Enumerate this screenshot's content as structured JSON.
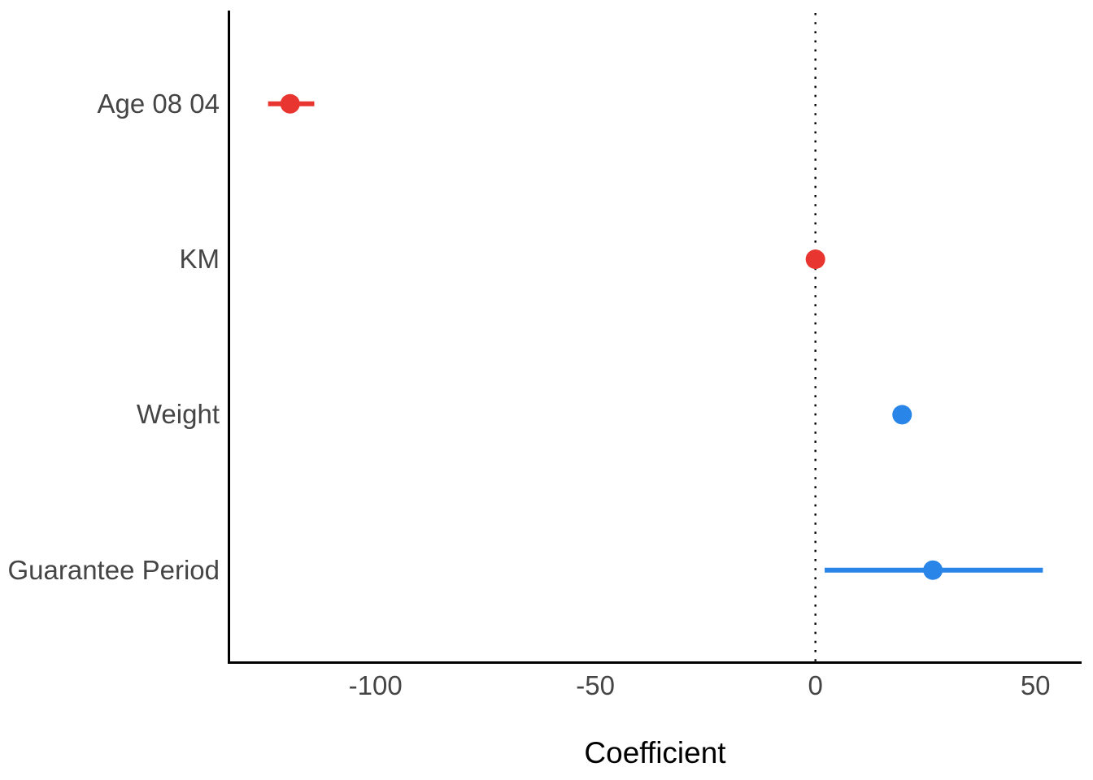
{
  "chart_data": {
    "type": "scatter",
    "subtype": "coefficient-pointrange",
    "orientation": "horizontal",
    "title": "",
    "xlabel": "Coefficient",
    "ylabel": "",
    "xlim": [
      -133.3,
      60.5
    ],
    "x_ticks": [
      -100,
      -50,
      0,
      50
    ],
    "categories_top_to_bottom": [
      "Age 08 04",
      "KM",
      "Weight",
      "Guarantee Period"
    ],
    "points": [
      {
        "label": "Age 08 04",
        "estimate": -119.4,
        "ci_low": -124.4,
        "ci_high": -113.9,
        "color_key": "negative"
      },
      {
        "label": "KM",
        "estimate": 0,
        "ci_low": 0,
        "ci_high": 0,
        "color_key": "negative"
      },
      {
        "label": "Weight",
        "estimate": 19.7,
        "ci_low": 19.7,
        "ci_high": 19.7,
        "color_key": "positive"
      },
      {
        "label": "Guarantee Period",
        "estimate": 26.7,
        "ci_low": 2.1,
        "ci_high": 51.7,
        "color_key": "positive"
      }
    ],
    "reference_line": {
      "x": 0,
      "style": "dotted",
      "color": "#000000"
    },
    "grid": false,
    "legend": false,
    "colors": {
      "negative": "#E8352F",
      "positive": "#2A85E8",
      "axis_line": "#000000",
      "tick_text": "#454545",
      "title_text": "#000000"
    }
  }
}
